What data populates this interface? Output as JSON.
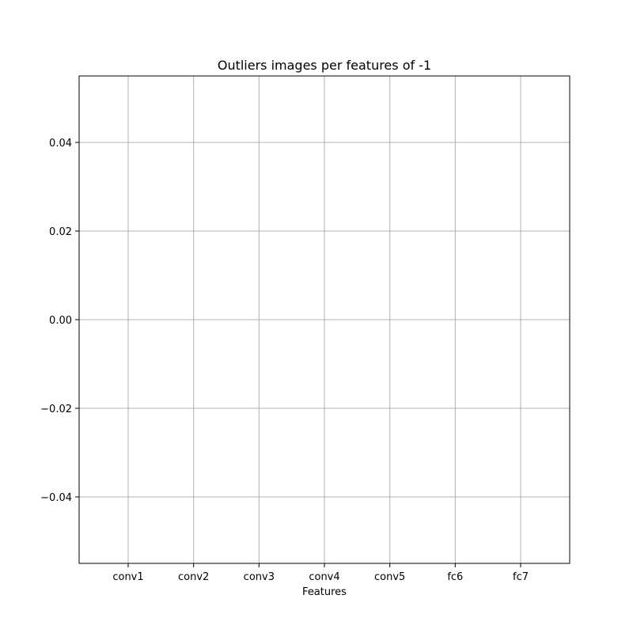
{
  "chart_data": {
    "type": "line",
    "title": "Outliers images per features of -1",
    "xlabel": "Features",
    "ylabel": "",
    "categories": [
      "conv1",
      "conv2",
      "conv3",
      "conv4",
      "conv5",
      "fc6",
      "fc7"
    ],
    "series": [],
    "ylim": [
      -0.055,
      0.055
    ],
    "yticks": [
      -0.04,
      -0.02,
      0.0,
      0.02,
      0.04
    ],
    "ytick_labels": [
      "−0.04",
      "−0.02",
      "0.00",
      "0.02",
      "0.04"
    ],
    "grid": true,
    "colors": {
      "grid": "#b0b0b0",
      "axes": "#000000",
      "background": "#ffffff"
    }
  }
}
